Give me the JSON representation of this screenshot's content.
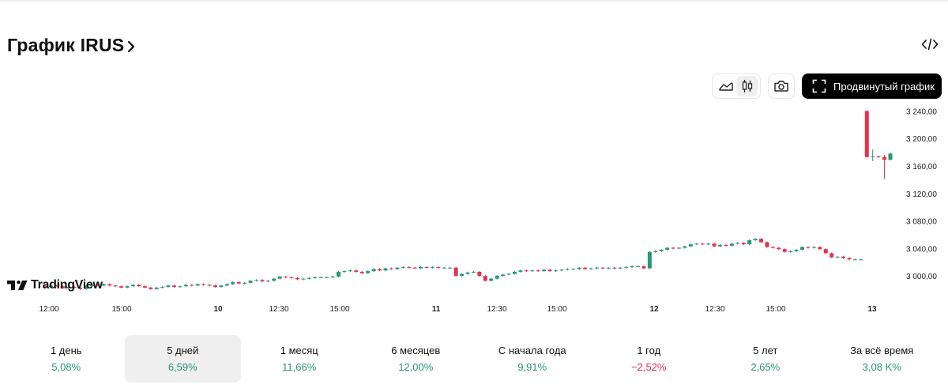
{
  "header": {
    "title": "График IRUS"
  },
  "toolbar": {
    "line_view_icon": "area-chart-icon",
    "candle_view_icon": "candlestick-icon",
    "screenshot_icon": "camera-icon",
    "embed_icon": "code-icon",
    "advanced_label": "Продвинутый график"
  },
  "branding": {
    "logo_text": "TradingView"
  },
  "colors": {
    "up": "#27977a",
    "down": "#e3334a",
    "active_bg": "#efefef",
    "accent": "#000000"
  },
  "chart_data": {
    "type": "candlestick",
    "y_ticks": [
      "3 240,00",
      "3 200,00",
      "3 160,00",
      "3 120,00",
      "3 080,00",
      "3 040,00",
      "3 000,00"
    ],
    "x_ticks": [
      "12:00",
      "15:00",
      "10",
      "12:30",
      "15:00",
      "11",
      "12:30",
      "15:00",
      "12",
      "12:30",
      "15:00",
      "13"
    ],
    "y_range": [
      2968,
      3252
    ],
    "closes": [
      2984,
      2986,
      2985,
      2982,
      2984,
      2983,
      2981,
      2985,
      2987,
      2986,
      2988,
      2986,
      2985,
      2983,
      2985,
      2987,
      2985,
      2983,
      2981,
      2983,
      2984,
      2986,
      2984,
      2985,
      2987,
      2986,
      2988,
      2987,
      2986,
      2984,
      2986,
      2988,
      2991,
      2989,
      2990,
      2993,
      2994,
      2992,
      2993,
      2996,
      2999,
      2998,
      2997,
      2995,
      2996,
      2997,
      2998,
      2998,
      2998,
      2999,
      3006,
      3007,
      3008,
      3006,
      3004,
      3007,
      3010,
      3008,
      3011,
      3010,
      3012,
      3013,
      3012,
      3011,
      3013,
      3012,
      3013,
      3012,
      3012,
      3012,
      3000,
      3003,
      3005,
      3006,
      3000,
      2993,
      2996,
      3000,
      3002,
      3003,
      3006,
      3008,
      3007,
      3008,
      3007,
      3009,
      3007,
      3008,
      3009,
      3010,
      3010,
      3012,
      3010,
      3011,
      3012,
      3011,
      3012,
      3011,
      3012,
      3013,
      3014,
      3014,
      3011,
      3035,
      3036,
      3038,
      3041,
      3040,
      3041,
      3043,
      3046,
      3047,
      3046,
      3047,
      3043,
      3045,
      3044,
      3047,
      3048,
      3046,
      3052,
      3054,
      3049,
      3042,
      3041,
      3039,
      3035,
      3036,
      3038,
      3042,
      3041,
      3042,
      3039,
      3033,
      3027,
      3028,
      3026,
      3024,
      3024,
      3024,
      3173,
      3174,
      3173,
      3169,
      3178
    ]
  },
  "periods": [
    {
      "label": "1 день",
      "value": "5,08%",
      "trend": "pos"
    },
    {
      "label": "5 дней",
      "value": "6,59%",
      "trend": "pos",
      "active": true
    },
    {
      "label": "1 месяц",
      "value": "11,66%",
      "trend": "pos"
    },
    {
      "label": "6 месяцев",
      "value": "12,00%",
      "trend": "pos"
    },
    {
      "label": "С начала года",
      "value": "9,91%",
      "trend": "pos"
    },
    {
      "label": "1 год",
      "value": "−2,52%",
      "trend": "neg"
    },
    {
      "label": "5 лет",
      "value": "2,65%",
      "trend": "pos"
    },
    {
      "label": "За всё время",
      "value": "3,08 K%",
      "trend": "pos"
    }
  ]
}
